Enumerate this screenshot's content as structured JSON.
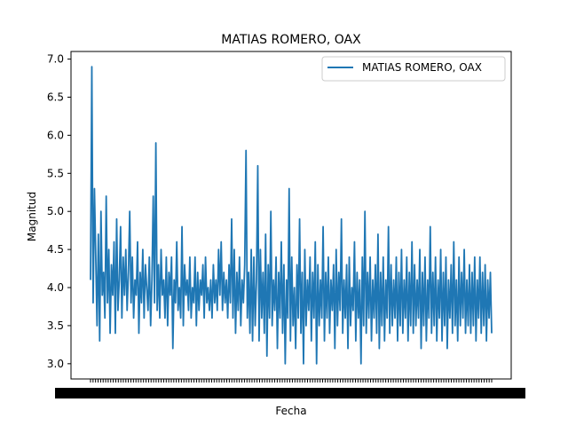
{
  "chart_data": {
    "type": "line",
    "title": "MATIAS ROMERO, OAX",
    "xlabel": "Fecha",
    "ylabel": "Magnitud",
    "ylim": [
      2.8,
      7.1
    ],
    "yticks": [
      3.0,
      3.5,
      4.0,
      4.5,
      5.0,
      5.5,
      6.0,
      6.5,
      7.0
    ],
    "ytick_labels": [
      "3.0",
      "3.5",
      "4.0",
      "4.5",
      "5.0",
      "5.5",
      "6.0",
      "6.5",
      "7.0"
    ],
    "x_tick_labels_note": "dense overlapping date labels (illegible)",
    "legend": {
      "position": "upper-right",
      "entries": [
        "MATIAS ROMERO, OAX"
      ]
    },
    "grid": false,
    "series": [
      {
        "name": "MATIAS ROMERO, OAX",
        "color": "#1f77b4",
        "values": [
          4.1,
          6.9,
          3.8,
          5.3,
          4.4,
          3.5,
          4.7,
          3.3,
          5.0,
          3.9,
          4.2,
          3.6,
          5.2,
          3.8,
          4.5,
          3.4,
          4.3,
          3.9,
          4.6,
          3.4,
          4.9,
          3.7,
          4.1,
          4.8,
          3.6,
          4.4,
          3.9,
          4.5,
          3.7,
          4.2,
          5.0,
          3.8,
          4.4,
          3.6,
          4.1,
          3.9,
          4.6,
          3.4,
          4.2,
          3.8,
          4.5,
          3.6,
          4.3,
          4.0,
          3.7,
          4.4,
          3.5,
          4.1,
          5.2,
          3.8,
          5.9,
          3.7,
          4.3,
          3.6,
          4.5,
          3.9,
          4.1,
          3.6,
          4.4,
          3.5,
          4.2,
          3.9,
          4.4,
          3.2,
          4.1,
          3.8,
          4.6,
          3.7,
          4.0,
          3.6,
          4.8,
          3.5,
          4.3,
          3.9,
          4.1,
          3.7,
          4.4,
          3.6,
          4.0,
          3.8,
          4.4,
          3.5,
          4.2,
          3.7,
          4.1,
          3.9,
          4.3,
          3.6,
          4.4,
          3.8,
          4.0,
          3.7,
          4.1,
          3.6,
          4.3,
          3.8,
          4.1,
          3.7,
          4.5,
          3.9,
          4.6,
          3.7,
          4.2,
          3.8,
          4.1,
          3.6,
          4.3,
          3.8,
          4.9,
          3.6,
          4.5,
          3.4,
          4.2,
          3.7,
          4.4,
          3.5,
          4.1,
          3.8,
          4.3,
          5.8,
          3.6,
          4.2,
          3.4,
          4.5,
          3.3,
          4.4,
          3.5,
          4.1,
          5.6,
          3.3,
          4.5,
          3.6,
          4.2,
          3.4,
          4.7,
          3.1,
          4.3,
          3.6,
          5.0,
          3.5,
          4.1,
          3.7,
          4.4,
          3.2,
          4.2,
          3.6,
          4.6,
          3.4,
          4.3,
          3.0,
          4.1,
          3.6,
          5.3,
          3.3,
          4.4,
          3.5,
          4.0,
          3.2,
          4.3,
          3.6,
          4.9,
          3.4,
          4.2,
          3.0,
          4.5,
          3.5,
          4.1,
          3.7,
          4.4,
          3.3,
          4.2,
          3.6,
          4.6,
          3.0,
          4.3,
          3.5,
          4.1,
          3.6,
          4.8,
          3.3,
          4.2,
          3.6,
          4.4,
          3.4,
          4.1,
          3.7,
          4.3,
          3.2,
          4.5,
          3.5,
          4.2,
          3.7,
          4.9,
          3.4,
          4.1,
          3.6,
          4.3,
          3.2,
          4.4,
          3.5,
          4.0,
          3.7,
          4.6,
          3.3,
          4.2,
          3.6,
          4.1,
          3.0,
          4.4,
          3.5,
          5.0,
          3.4,
          4.2,
          3.6,
          4.4,
          3.3,
          4.1,
          3.6,
          4.3,
          3.4,
          4.7,
          3.2,
          4.2,
          3.5,
          4.4,
          3.3,
          4.1,
          3.6,
          4.8,
          3.4,
          4.3,
          3.5,
          4.1,
          3.6,
          4.4,
          3.3,
          4.2,
          3.5,
          4.5,
          3.4,
          4.1,
          3.6,
          4.4,
          3.3,
          4.2,
          3.5,
          4.6,
          3.4,
          4.3,
          3.5,
          4.1,
          3.6,
          4.5,
          3.2,
          4.2,
          3.5,
          4.4,
          3.3,
          4.1,
          3.6,
          4.8,
          3.4,
          4.2,
          3.5,
          4.4,
          3.3,
          4.1,
          3.6,
          4.5,
          3.3,
          4.2,
          3.5,
          4.4,
          3.2,
          4.1,
          3.6,
          4.3,
          3.4,
          4.6,
          3.5,
          4.1,
          3.3,
          4.4,
          3.5,
          4.2,
          3.6,
          4.5,
          3.4,
          4.1,
          3.5,
          4.3,
          3.4,
          4.2,
          3.5,
          4.4,
          3.3,
          4.1,
          3.6,
          4.4,
          3.4,
          4.2,
          3.5,
          4.3,
          3.3,
          4.1,
          3.6,
          4.2,
          3.4
        ]
      }
    ]
  }
}
